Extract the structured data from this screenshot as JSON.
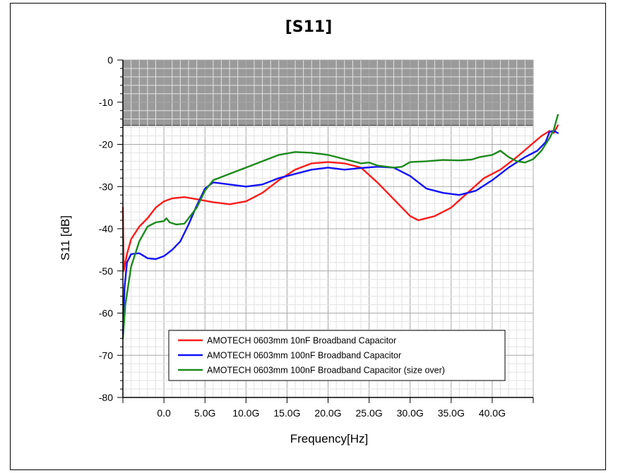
{
  "chart_data": {
    "type": "line",
    "title": "[S11]",
    "xlabel": "Frequency[Hz]",
    "ylabel": "S11 [dB]",
    "xlim": [
      -5,
      45
    ],
    "ylim": [
      -80,
      0
    ],
    "x_ticks": [
      {
        "value": 0,
        "label": "0.0"
      },
      {
        "value": 5,
        "label": "5.0G"
      },
      {
        "value": 10,
        "label": "10.0G"
      },
      {
        "value": 15,
        "label": "15.0G"
      },
      {
        "value": 20,
        "label": "20.0G"
      },
      {
        "value": 25,
        "label": "25.0G"
      },
      {
        "value": 30,
        "label": "30.0G"
      },
      {
        "value": 35,
        "label": "35.0G"
      },
      {
        "value": 40,
        "label": "40.0G"
      }
    ],
    "y_ticks": [
      {
        "value": 0,
        "label": "0"
      },
      {
        "value": -10,
        "label": "-10"
      },
      {
        "value": -20,
        "label": "-20"
      },
      {
        "value": -30,
        "label": "-30"
      },
      {
        "value": -40,
        "label": "-40"
      },
      {
        "value": -50,
        "label": "-50"
      },
      {
        "value": -60,
        "label": "-60"
      },
      {
        "value": -70,
        "label": "-70"
      },
      {
        "value": -80,
        "label": "-80"
      }
    ],
    "grid": true,
    "shaded_band": {
      "from": -15.5,
      "to": 0,
      "color": "#9a9a9a"
    },
    "legend": "bottom-right",
    "series": [
      {
        "name": "AMOTECH 0603mm 10nF Broadband Capacitor",
        "color": "#ff1a1a",
        "points": [
          [
            -5,
            -35
          ],
          [
            -4.9,
            -50
          ],
          [
            -4.5,
            -46
          ],
          [
            -4,
            -42.5
          ],
          [
            -3,
            -39.5
          ],
          [
            -2,
            -37.5
          ],
          [
            -1,
            -35
          ],
          [
            0,
            -33.5
          ],
          [
            1,
            -32.8
          ],
          [
            2.5,
            -32.5
          ],
          [
            4,
            -33
          ],
          [
            6,
            -33.7
          ],
          [
            8,
            -34.2
          ],
          [
            10,
            -33.5
          ],
          [
            12,
            -31.5
          ],
          [
            14,
            -28.5
          ],
          [
            16,
            -26
          ],
          [
            18,
            -24.5
          ],
          [
            20,
            -24.2
          ],
          [
            22,
            -24.5
          ],
          [
            24,
            -25.5
          ],
          [
            26,
            -29
          ],
          [
            28,
            -33
          ],
          [
            30,
            -37
          ],
          [
            31,
            -38
          ],
          [
            32,
            -37.5
          ],
          [
            33,
            -37
          ],
          [
            35,
            -35
          ],
          [
            37,
            -31.5
          ],
          [
            39,
            -28
          ],
          [
            41,
            -26
          ],
          [
            43,
            -23
          ],
          [
            44.5,
            -20.5
          ],
          [
            46,
            -18
          ],
          [
            47,
            -16.8
          ],
          [
            47.5,
            -17.3
          ],
          [
            48,
            -15.5
          ]
        ]
      },
      {
        "name": "AMOTECH 0603mm 100nF Broadband  Capacitor",
        "color": "#1010ff",
        "points": [
          [
            -5,
            -65
          ],
          [
            -4.8,
            -54
          ],
          [
            -4.5,
            -48
          ],
          [
            -4,
            -46
          ],
          [
            -3,
            -45.8
          ],
          [
            -2,
            -47
          ],
          [
            -1,
            -47.2
          ],
          [
            0,
            -46.5
          ],
          [
            1,
            -45
          ],
          [
            2,
            -43
          ],
          [
            3,
            -39
          ],
          [
            4,
            -34.5
          ],
          [
            5,
            -30.5
          ],
          [
            6,
            -29
          ],
          [
            8,
            -29.5
          ],
          [
            10,
            -30
          ],
          [
            12,
            -29.5
          ],
          [
            14,
            -28
          ],
          [
            16,
            -27
          ],
          [
            18,
            -26
          ],
          [
            20,
            -25.5
          ],
          [
            22,
            -26
          ],
          [
            24,
            -25.6
          ],
          [
            26,
            -25.3
          ],
          [
            28,
            -25.5
          ],
          [
            30,
            -27.5
          ],
          [
            32,
            -30.5
          ],
          [
            34,
            -31.5
          ],
          [
            36,
            -32
          ],
          [
            38,
            -31
          ],
          [
            40,
            -28.5
          ],
          [
            42,
            -25.5
          ],
          [
            44,
            -23
          ],
          [
            45.5,
            -21.5
          ],
          [
            46.5,
            -19.5
          ],
          [
            47,
            -17
          ],
          [
            47.5,
            -16.8
          ],
          [
            48,
            -17.3
          ]
        ]
      },
      {
        "name": "AMOTECH 0603mm 100nF Broadband Capacitor (size over)",
        "color": "#1c8a1c",
        "points": [
          [
            -5,
            -66
          ],
          [
            -4.7,
            -58
          ],
          [
            -4,
            -49
          ],
          [
            -3,
            -43
          ],
          [
            -2,
            -39.5
          ],
          [
            -1,
            -38.5
          ],
          [
            0,
            -38.2
          ],
          [
            0.3,
            -37.5
          ],
          [
            0.7,
            -38.5
          ],
          [
            1.5,
            -39
          ],
          [
            2.5,
            -38.8
          ],
          [
            4,
            -35
          ],
          [
            5,
            -31
          ],
          [
            6,
            -28.5
          ],
          [
            8,
            -27
          ],
          [
            10,
            -25.5
          ],
          [
            12,
            -24
          ],
          [
            14,
            -22.5
          ],
          [
            16,
            -21.8
          ],
          [
            18,
            -22
          ],
          [
            20,
            -22.5
          ],
          [
            22,
            -23.5
          ],
          [
            24,
            -24.5
          ],
          [
            25,
            -24.3
          ],
          [
            26,
            -25
          ],
          [
            28,
            -25.5
          ],
          [
            29,
            -25.3
          ],
          [
            30,
            -24.2
          ],
          [
            32,
            -24
          ],
          [
            34,
            -23.7
          ],
          [
            36,
            -23.8
          ],
          [
            37.5,
            -23.6
          ],
          [
            38.5,
            -23
          ],
          [
            40,
            -22.5
          ],
          [
            41,
            -21.5
          ],
          [
            42,
            -23
          ],
          [
            43,
            -24
          ],
          [
            44,
            -24.3
          ],
          [
            45,
            -23.5
          ],
          [
            46,
            -21.5
          ],
          [
            47,
            -18.5
          ],
          [
            47.5,
            -16.5
          ],
          [
            48,
            -13
          ]
        ]
      }
    ]
  }
}
